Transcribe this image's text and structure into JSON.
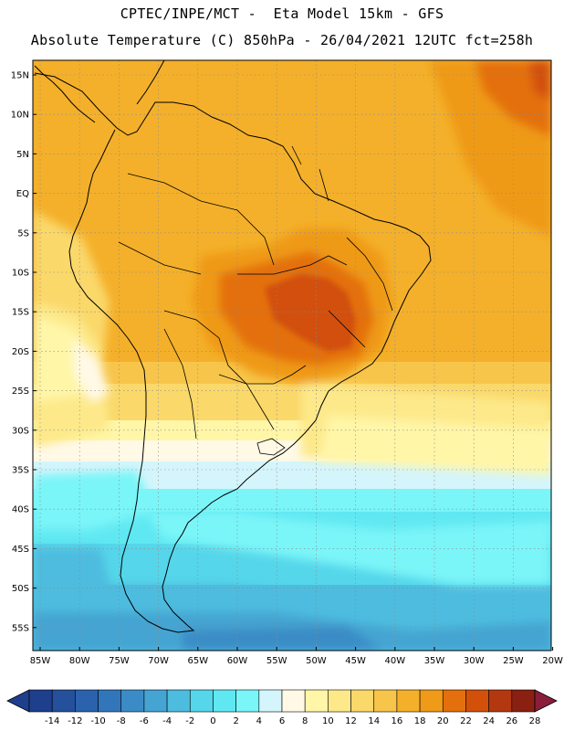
{
  "header": {
    "line1": "CPTEC/INPE/MCT -  Eta Model 15km - GFS",
    "line2": "Absolute Temperature (C) 850hPa - 26/04/2021 12UTC fct=258h"
  },
  "map": {
    "lat_labels": [
      "15N",
      "10N",
      "5N",
      "EQ",
      "5S",
      "10S",
      "15S",
      "20S",
      "25S",
      "30S",
      "35S",
      "40S",
      "45S",
      "50S",
      "55S"
    ],
    "lon_labels": [
      "85W",
      "80W",
      "75W",
      "70W",
      "65W",
      "60W",
      "55W",
      "50W",
      "45W",
      "40W",
      "35W",
      "30W",
      "25W",
      "20W"
    ],
    "colors": {
      "c_m14": "#1e3f8c",
      "c_m12": "#24509c",
      "c_m10": "#2a62ad",
      "c_m8": "#3176ba",
      "c_m6": "#3b8cc6",
      "c_m4": "#44a4d2",
      "c_m2": "#4dbcdf",
      "c_0": "#55d6ea",
      "c_2": "#60e8f2",
      "c_4": "#7af5f8",
      "c_6": "#d4f5fb",
      "c_8": "#fff9e6",
      "c_10": "#fff6a8",
      "c_12": "#fde98a",
      "c_14": "#fad86a",
      "c_16": "#f7c54a",
      "c_18": "#f4b02a",
      "c_20": "#ef9a18",
      "c_22": "#e3700c",
      "c_24": "#d2500a",
      "c_26": "#b33810",
      "c_28": "#8a2012"
    }
  },
  "legend": {
    "ticks": [
      "-14",
      "-12",
      "-10",
      "-8",
      "-6",
      "-4",
      "-2",
      "0",
      "2",
      "4",
      "6",
      "8",
      "10",
      "12",
      "14",
      "16",
      "18",
      "20",
      "22",
      "24",
      "26",
      "28"
    ],
    "colors": [
      "#1e3f8c",
      "#24509c",
      "#2a62ad",
      "#3176ba",
      "#3b8cc6",
      "#44a4d2",
      "#4dbcdf",
      "#55d6ea",
      "#60e8f2",
      "#7af5f8",
      "#d4f5fb",
      "#fff9e6",
      "#fff6a8",
      "#fde98a",
      "#fad86a",
      "#f7c54a",
      "#f4b02a",
      "#ef9a18",
      "#e3700c",
      "#d2500a",
      "#b33810",
      "#8a2012"
    ],
    "under_color": "#1e3f8c",
    "over_color": "#8a1e3a"
  }
}
